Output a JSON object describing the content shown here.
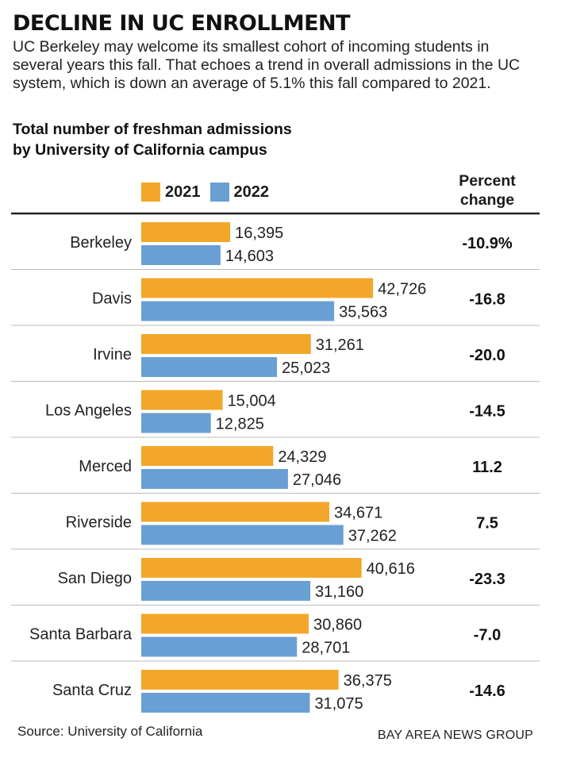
{
  "header": {
    "title": "DECLINE IN UC ENROLLMENT",
    "subtitle": "UC Berkeley may welcome its smallest cohort of incoming students in several years this fall. That echoes a trend in overall admissions in the UC system, which is down an average of 5.1% this fall compared to 2021.",
    "chart_heading_line1": "Total number of freshman admissions",
    "chart_heading_line2": "by University of California campus"
  },
  "legend": {
    "items": [
      {
        "label": "2021",
        "color": "#F2A72B"
      },
      {
        "label": "2022",
        "color": "#6A9FD3"
      }
    ],
    "percent_header_line1": "Percent",
    "percent_header_line2": "change"
  },
  "chart_data": {
    "type": "bar",
    "orientation": "horizontal",
    "title": "Total number of freshman admissions by University of California campus",
    "categories": [
      "Berkeley",
      "Davis",
      "Irvine",
      "Los Angeles",
      "Merced",
      "Riverside",
      "San Diego",
      "Santa Barbara",
      "Santa Cruz"
    ],
    "series": [
      {
        "name": "2021",
        "color": "#F2A72B",
        "values": [
          16395,
          42726,
          31261,
          15004,
          24329,
          34671,
          40616,
          30860,
          36375
        ]
      },
      {
        "name": "2022",
        "color": "#6A9FD3",
        "values": [
          14603,
          35563,
          25023,
          12825,
          27046,
          37262,
          31160,
          28701,
          31075
        ]
      }
    ],
    "percent_change": [
      "-10.9%",
      "-16.8",
      "-20.0",
      "-14.5",
      "11.2",
      "7.5",
      "-23.3",
      "-7.0",
      "-14.6"
    ],
    "xlim": [
      0,
      55000
    ],
    "xlabel": "",
    "ylabel": "",
    "legend_position": "top-left",
    "grid": false
  },
  "footer": {
    "source": "Source: University of California",
    "credit": "BAY AREA NEWS GROUP"
  }
}
